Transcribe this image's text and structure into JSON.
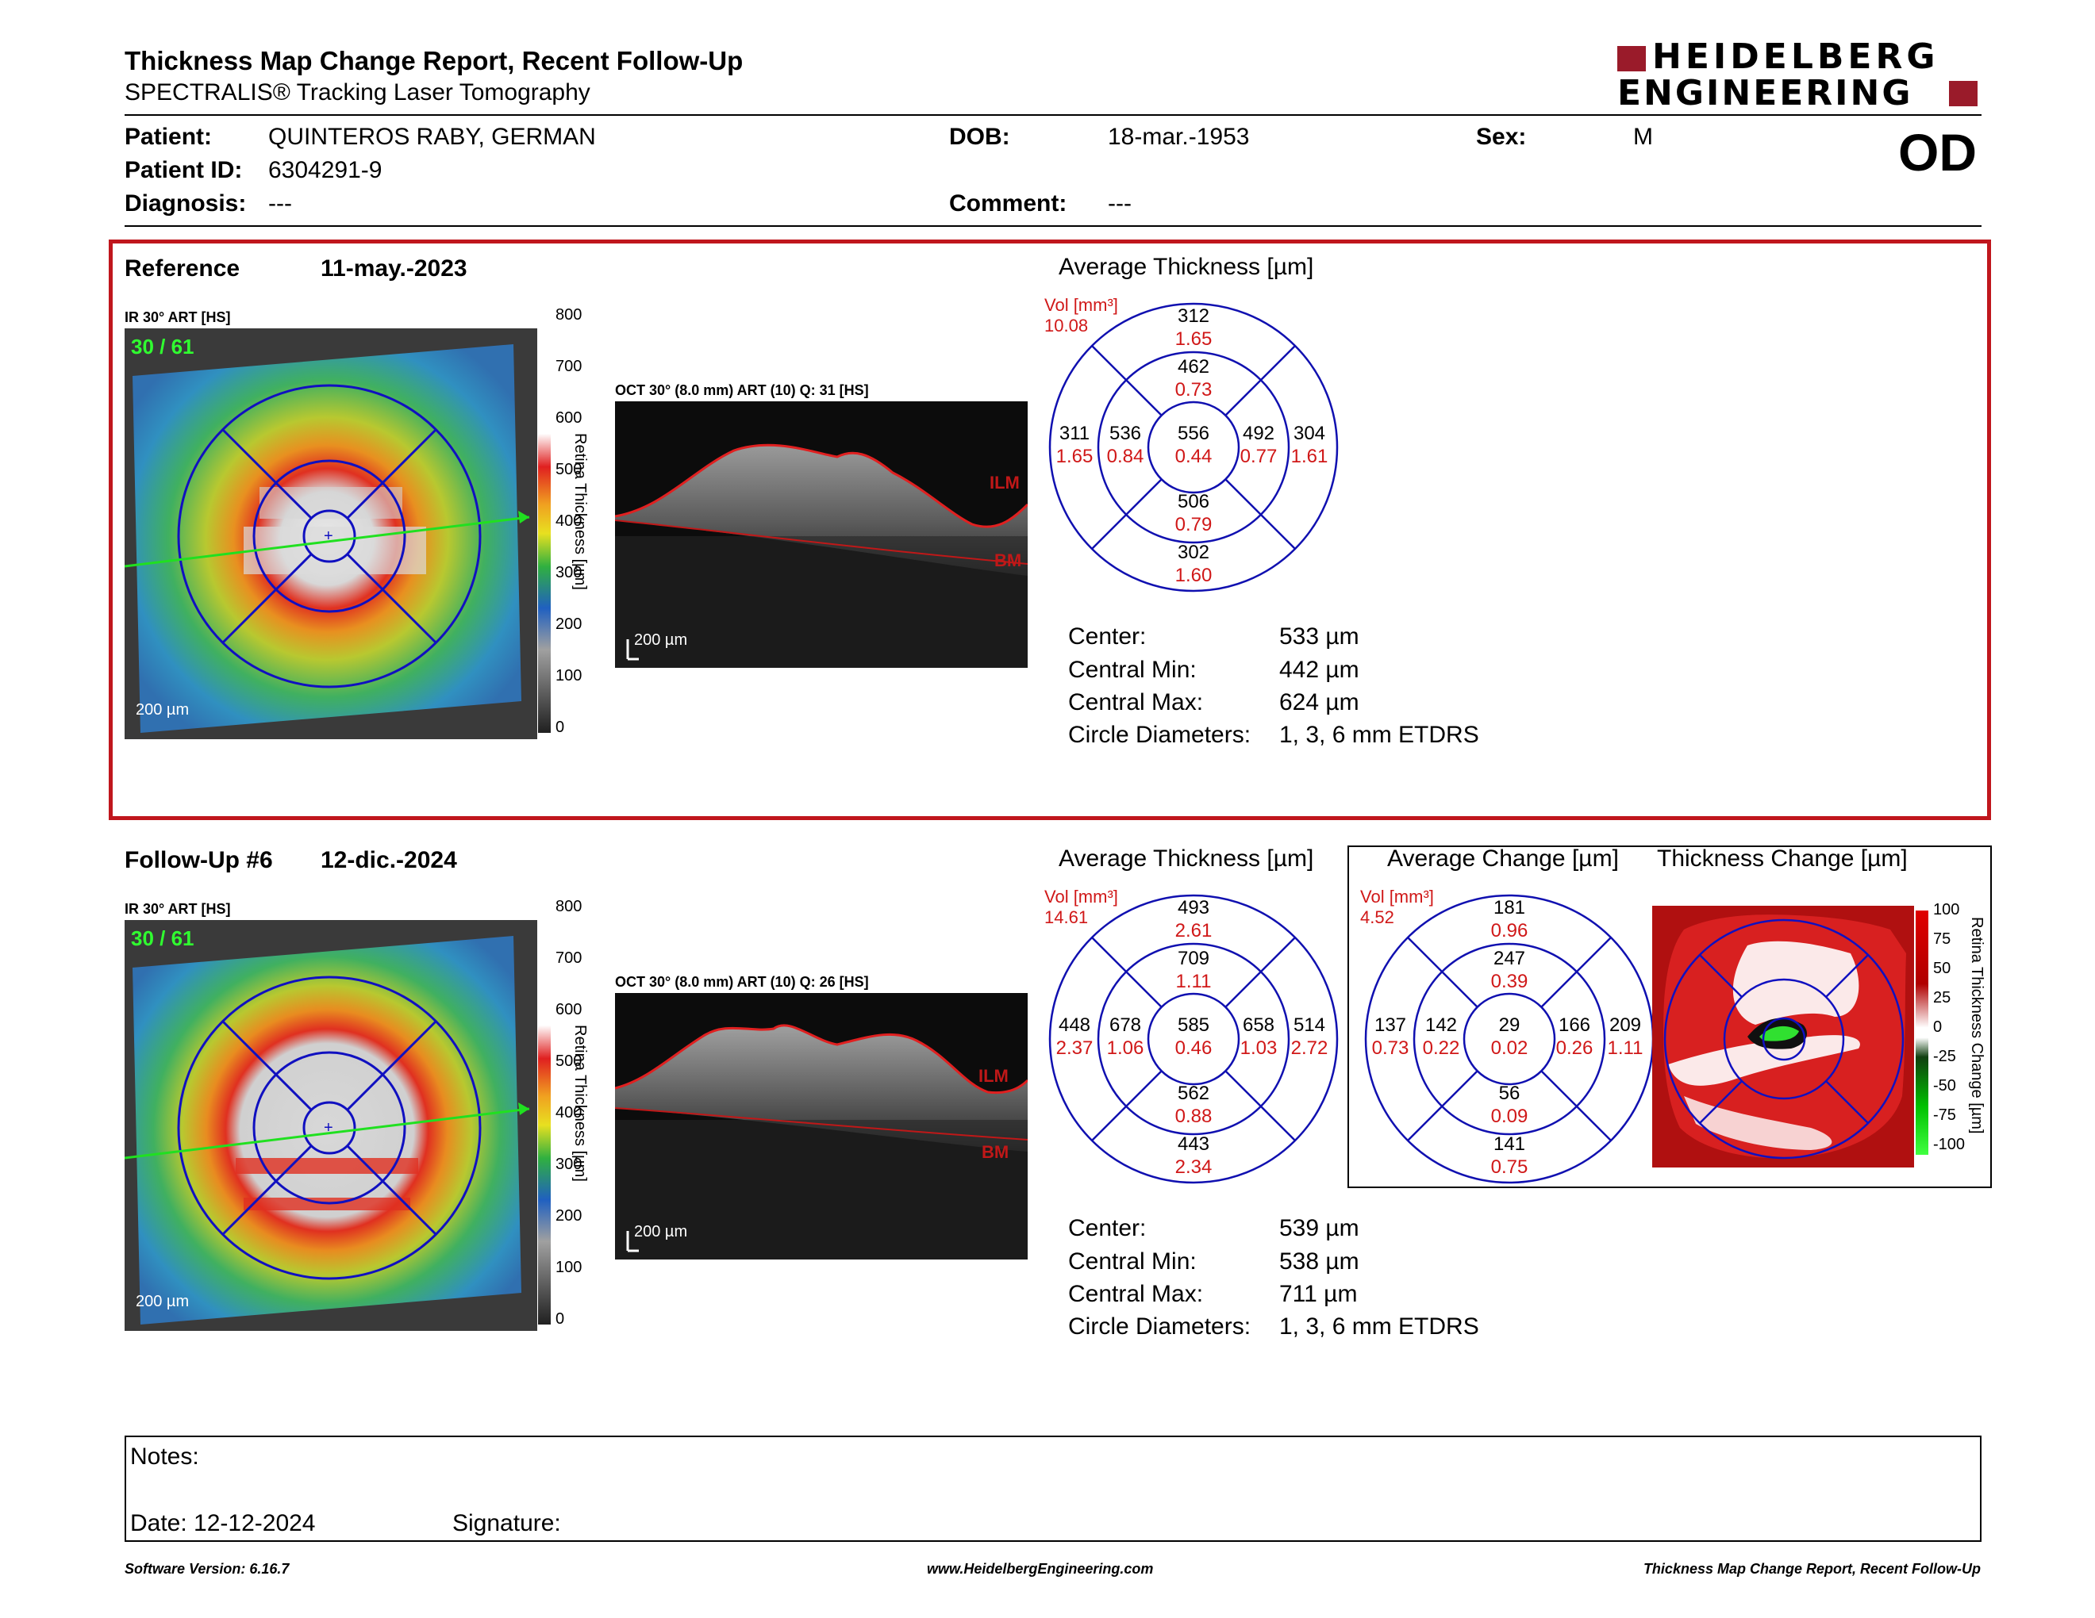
{
  "header": {
    "title": "Thickness Map Change Report, Recent Follow-Up",
    "subtitle": "SPECTRALIS® Tracking Laser Tomography",
    "logo_line1": "HEIDELBERG",
    "logo_line2": "ENGINEERING",
    "eye": "OD"
  },
  "patient": {
    "patient_label": "Patient:",
    "patient_value": "QUINTEROS RABY, GERMAN",
    "id_label": "Patient ID:",
    "id_value": "6304291-9",
    "diagnosis_label": "Diagnosis:",
    "diagnosis_value": "---",
    "dob_label": "DOB:",
    "dob_value": "18-mar.-1953",
    "comment_label": "Comment:",
    "comment_value": "---",
    "sex_label": "Sex:",
    "sex_value": "M"
  },
  "reference": {
    "label": "Reference",
    "date": "11-may.-2023",
    "ir_label": "IR 30° ART [HS]",
    "ir_counter": "30 / 61",
    "scale_label": "200 µm",
    "colorbar_ticks": [
      "800",
      "700",
      "600",
      "500",
      "400",
      "300",
      "200",
      "100",
      "0"
    ],
    "colorbar_title": "Retina Thickness [µm]",
    "oct_label": "OCT 30° (8.0 mm) ART (10) Q: 31 [HS]",
    "oct_scale": "200 µm",
    "ilm": "ILM",
    "bm": "BM",
    "avg_title": "Average Thickness [µm]",
    "vol_label": "Vol [mm³]",
    "vol_value": "10.08",
    "sectors": {
      "outer_top": [
        "312",
        "1.65"
      ],
      "inner_top": [
        "462",
        "0.73"
      ],
      "outer_left": [
        "311",
        "1.65"
      ],
      "inner_left": [
        "536",
        "0.84"
      ],
      "center": [
        "556",
        "0.44"
      ],
      "inner_right": [
        "492",
        "0.77"
      ],
      "outer_right": [
        "304",
        "1.61"
      ],
      "inner_bottom": [
        "506",
        "0.79"
      ],
      "outer_bottom": [
        "302",
        "1.60"
      ]
    },
    "stats": {
      "center_label": "Center:",
      "center_value": "533 µm",
      "min_label": "Central Min:",
      "min_value": "442 µm",
      "max_label": "Central Max:",
      "max_value": "624 µm",
      "diam_label": "Circle Diameters:",
      "diam_value": "1, 3, 6 mm ETDRS"
    }
  },
  "followup": {
    "label": "Follow-Up #6",
    "date": "12-dic.-2024",
    "ir_label": "IR 30° ART [HS]",
    "ir_counter": "30 / 61",
    "scale_label": "200 µm",
    "colorbar_ticks": [
      "800",
      "700",
      "600",
      "500",
      "400",
      "300",
      "200",
      "100",
      "0"
    ],
    "colorbar_title": "Retina Thickness [µm]",
    "oct_label": "OCT 30° (8.0 mm) ART (10) Q: 26 [HS]",
    "oct_scale": "200 µm",
    "ilm": "ILM",
    "bm": "BM",
    "avg_title": "Average Thickness [µm]",
    "vol_label": "Vol [mm³]",
    "vol_value": "14.61",
    "sectors": {
      "outer_top": [
        "493",
        "2.61"
      ],
      "inner_top": [
        "709",
        "1.11"
      ],
      "outer_left": [
        "448",
        "2.37"
      ],
      "inner_left": [
        "678",
        "1.06"
      ],
      "center": [
        "585",
        "0.46"
      ],
      "inner_right": [
        "658",
        "1.03"
      ],
      "outer_right": [
        "514",
        "2.72"
      ],
      "inner_bottom": [
        "562",
        "0.88"
      ],
      "outer_bottom": [
        "443",
        "2.34"
      ]
    },
    "stats": {
      "center_label": "Center:",
      "center_value": "539 µm",
      "min_label": "Central Min:",
      "min_value": "538 µm",
      "max_label": "Central Max:",
      "max_value": "711 µm",
      "diam_label": "Circle Diameters:",
      "diam_value": "1, 3, 6 mm ETDRS"
    }
  },
  "change": {
    "avg_title": "Average Change [µm]",
    "map_title": "Thickness Change [µm]",
    "vol_label": "Vol [mm³]",
    "vol_value": "4.52",
    "sectors": {
      "outer_top": [
        "181",
        "0.96"
      ],
      "inner_top": [
        "247",
        "0.39"
      ],
      "outer_left": [
        "137",
        "0.73"
      ],
      "inner_left": [
        "142",
        "0.22"
      ],
      "center": [
        "29",
        "0.02"
      ],
      "inner_right": [
        "166",
        "0.26"
      ],
      "outer_right": [
        "209",
        "1.11"
      ],
      "inner_bottom": [
        "56",
        "0.09"
      ],
      "outer_bottom": [
        "141",
        "0.75"
      ]
    },
    "colorbar_ticks": [
      "100",
      "75",
      "50",
      "25",
      "0",
      "-25",
      "-50",
      "-75",
      "-100"
    ],
    "colorbar_title": "Retina Thickness Change [µm]"
  },
  "notes": {
    "notes_label": "Notes:",
    "date_label": "Date: 12-12-2024",
    "signature_label": "Signature:"
  },
  "footer": {
    "software": "Software Version: 6.16.7",
    "url": "www.HeidelbergEngineering.com",
    "report": "Thickness Map Change Report, Recent Follow-Up"
  },
  "colors": {
    "accent_red": "#c0161d",
    "etdrs_blue": "#1010b0",
    "volume_red": "#d01818"
  }
}
